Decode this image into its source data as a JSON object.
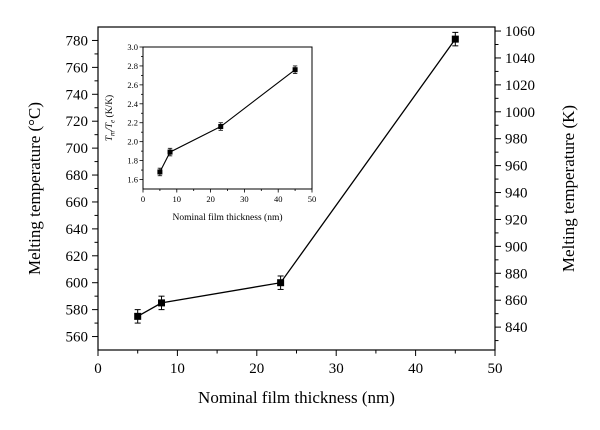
{
  "chart_data": [
    {
      "type": "line",
      "xlabel": "Nominal film thickness (nm)",
      "ylabel": "Melting temperature (°C)",
      "y2label": "Melting temperature (K)",
      "xlim": [
        0,
        50
      ],
      "ylim": [
        550,
        790
      ],
      "y2lim": [
        823,
        1063
      ],
      "xticks": [
        0,
        10,
        20,
        30,
        40,
        50
      ],
      "yticks": [
        560,
        580,
        600,
        620,
        640,
        660,
        680,
        700,
        720,
        740,
        760,
        780
      ],
      "y2ticks": [
        840,
        860,
        880,
        900,
        920,
        940,
        960,
        980,
        1000,
        1020,
        1040,
        1060
      ],
      "marker": "square",
      "error_bars": true,
      "grid": false,
      "x": [
        5,
        8,
        23,
        45
      ],
      "y": [
        575,
        585,
        600,
        781
      ],
      "yerr": [
        5,
        5,
        5,
        5
      ]
    },
    {
      "type": "line",
      "xlabel": "Nominal film thickness (nm)",
      "ylabel_parts": [
        "T",
        "m",
        "/T",
        "e",
        " (K/K)"
      ],
      "xlim": [
        0,
        50
      ],
      "ylim": [
        1.5,
        3.0
      ],
      "xticks": [
        0,
        10,
        20,
        30,
        40,
        50
      ],
      "yticks": [
        "1.6",
        "1.8",
        "2.0",
        "2.2",
        "2.4",
        "2.6",
        "2.8",
        "3.0"
      ],
      "marker": "square",
      "error_bars": true,
      "grid": false,
      "x": [
        5,
        8,
        23,
        45
      ],
      "y": [
        1.68,
        1.89,
        2.16,
        2.76
      ],
      "yerr": [
        0.04,
        0.04,
        0.04,
        0.04
      ]
    }
  ]
}
